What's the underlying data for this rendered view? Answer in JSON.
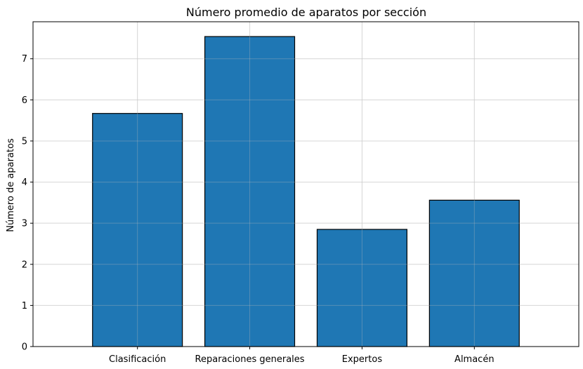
{
  "chart_data": {
    "type": "bar",
    "title": "Número promedio de aparatos por sección",
    "xlabel": "",
    "ylabel": "Número de aparatos",
    "categories": [
      "Clasificación",
      "Reparaciones generales",
      "Expertos",
      "Almacén"
    ],
    "values": [
      5.67,
      7.54,
      2.85,
      3.56
    ],
    "ylim": [
      0,
      7.9
    ],
    "yticks": [
      0,
      1,
      2,
      3,
      4,
      5,
      6,
      7
    ],
    "grid": true,
    "legend": "none",
    "colors": {
      "bar_fill": "#1f77b4",
      "bar_edge": "#000000",
      "grid": "#e6e6e6",
      "axis": "#000000"
    }
  }
}
